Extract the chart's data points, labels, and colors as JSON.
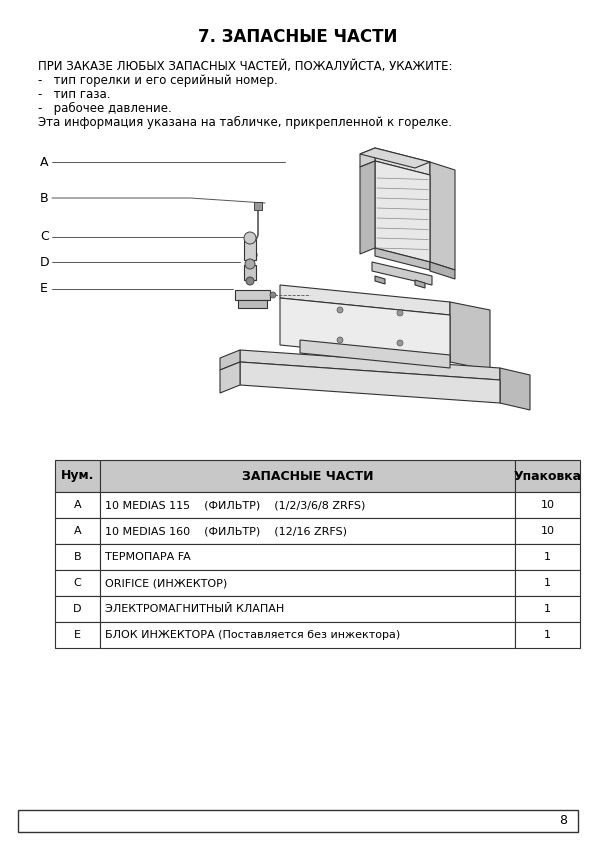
{
  "title": "7. ЗАПАСНЫЕ ЧАСТИ",
  "title_fontsize": 12,
  "bg_color": "#ffffff",
  "text_color": "#000000",
  "intro_text": "ПРИ ЗАКАЗЕ ЛЮБЫХ ЗАПАСНЫХ ЧАСТЕЙ, ПОЖАЛУЙСТА, УКАЖИТЕ:",
  "bullets": [
    "-   тип горелки и его серийный номер.",
    "-   тип газа.",
    "-   рабочее давление."
  ],
  "closing_text": "Эта информация указана на табличке, прикрепленной к горелке.",
  "diagram_labels": [
    "A",
    "B",
    "C",
    "D",
    "E"
  ],
  "table_header": [
    "Нум.",
    "ЗАПАСНЫЕ ЧАСТИ",
    "Упаковка"
  ],
  "table_rows": [
    [
      "A",
      "10 MEDIAS 115    (ФИЛЬТР)    (1/2/3/6/8 ZRFS)",
      "10"
    ],
    [
      "A",
      "10 MEDIAS 160    (ФИЛЬТР)    (12/16 ZRFS)",
      "10"
    ],
    [
      "B",
      "ТЕРМОПАРА FA",
      "1"
    ],
    [
      "C",
      "ORIFICE (ИНЖЕКТОР)",
      "1"
    ],
    [
      "D",
      "ЭЛЕКТРОМАГНИТНЫЙ КЛАПАН",
      "1"
    ],
    [
      "E",
      "БЛОК ИНЖЕКТОРА (Поставляется без инжектора)",
      "1"
    ]
  ],
  "table_header_bg": "#c8c8c8",
  "table_border_color": "#333333",
  "page_number": "8",
  "font_size_body": 8.5,
  "font_size_table": 8.0,
  "font_size_header": 9.0
}
